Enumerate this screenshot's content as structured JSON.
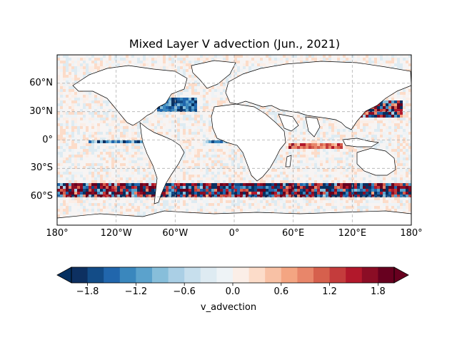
{
  "title": "Mixed Layer V advection (Jun., 2021)",
  "map": {
    "projection": "PlateCarree",
    "extent_lon": [
      -180,
      180
    ],
    "extent_lat": [
      -90,
      90
    ],
    "gridlines": true,
    "lat_ticks": [
      {
        "value": 60,
        "label": "60°N"
      },
      {
        "value": 30,
        "label": "30°N"
      },
      {
        "value": 0,
        "label": "0°"
      },
      {
        "value": -30,
        "label": "30°S"
      },
      {
        "value": -60,
        "label": "60°S"
      }
    ],
    "lon_ticks": [
      {
        "value": -180,
        "label": "180°"
      },
      {
        "value": -120,
        "label": "120°W"
      },
      {
        "value": -60,
        "label": "60°W"
      },
      {
        "value": 0,
        "label": "0°"
      },
      {
        "value": 60,
        "label": "60°E"
      },
      {
        "value": 120,
        "label": "120°E"
      },
      {
        "value": 180,
        "label": "180°"
      }
    ]
  },
  "colorbar": {
    "label": "v_advection",
    "min": -2.0,
    "max": 2.0,
    "extend": "both",
    "colormap": "RdBu_r",
    "levels": [
      -2.0,
      -1.8,
      -1.6,
      -1.4,
      -1.2,
      -1.0,
      -0.8,
      -0.6,
      -0.4,
      -0.2,
      0.0,
      0.2,
      0.4,
      0.6,
      0.8,
      1.0,
      1.2,
      1.4,
      1.6,
      1.8,
      2.0
    ],
    "ticks": [
      {
        "value": -1.8,
        "label": "−1.8"
      },
      {
        "value": -1.2,
        "label": "−1.2"
      },
      {
        "value": -0.6,
        "label": "−0.6"
      },
      {
        "value": 0.0,
        "label": "0.0"
      },
      {
        "value": 0.6,
        "label": "0.6"
      },
      {
        "value": 1.2,
        "label": "1.2"
      },
      {
        "value": 1.8,
        "label": "1.8"
      }
    ],
    "colors": [
      "#0d3061",
      "#134c87",
      "#2166ac",
      "#3a87bd",
      "#5ba2cc",
      "#87beda",
      "#aacfe5",
      "#c7dfed",
      "#deebf2",
      "#eef3f6",
      "#fbeee7",
      "#fcdcc9",
      "#f8c1a5",
      "#f4a582",
      "#e8866a",
      "#d6604d",
      "#c43c3c",
      "#b2182b",
      "#8b0d25",
      "#67001f"
    ],
    "under_color": "#053061",
    "over_color": "#67001f"
  },
  "features": [
    {
      "label": "Pacific equatorial cold tongue",
      "lon": [
        -150,
        -90
      ],
      "lat": [
        -3,
        0
      ],
      "value": -1.5
    },
    {
      "label": "Atlantic equatorial band",
      "lon": [
        -30,
        10
      ],
      "lat": [
        -2,
        1
      ],
      "value": -1.3
    },
    {
      "label": "Indian Ocean warm band",
      "lon": [
        55,
        110
      ],
      "lat": [
        -8,
        -3
      ],
      "value": 1.2
    },
    {
      "label": "Southern Ocean ACC",
      "lon": [
        -180,
        180
      ],
      "lat": [
        -58,
        -45
      ],
      "value": 1.8
    },
    {
      "label": "Kuroshio",
      "lon": [
        125,
        170
      ],
      "lat": [
        25,
        42
      ],
      "value": 1.8
    },
    {
      "label": "Gulf Stream",
      "lon": [
        -80,
        -40
      ],
      "lat": [
        30,
        45
      ],
      "value": -1.6
    }
  ]
}
